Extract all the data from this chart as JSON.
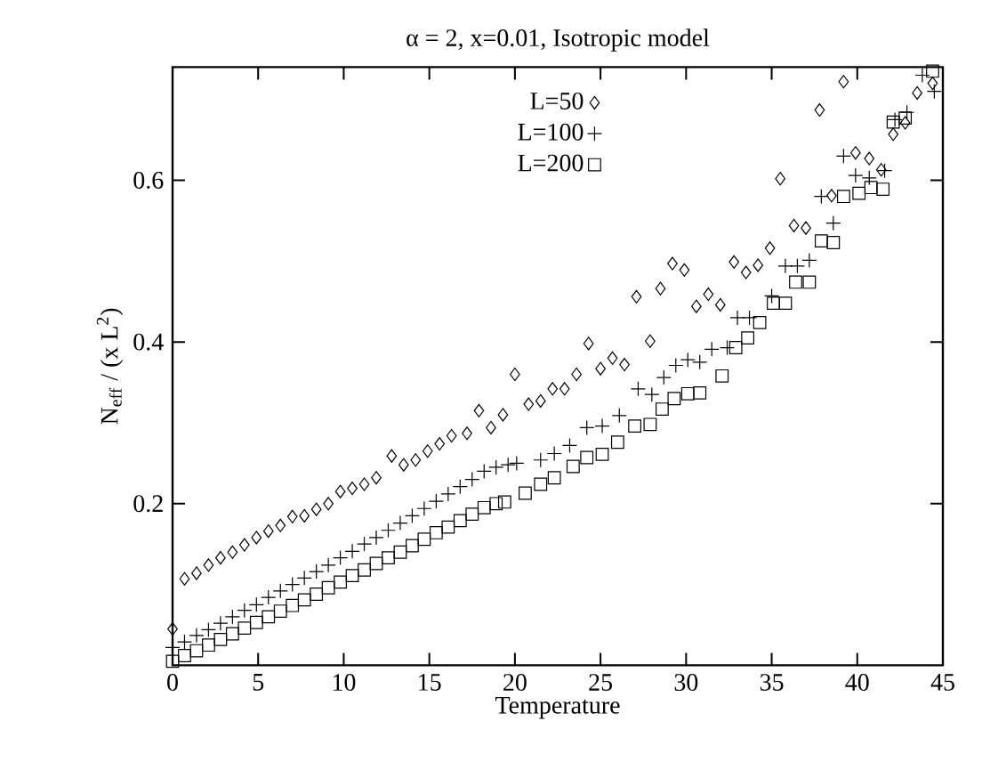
{
  "chart_data": {
    "type": "scatter",
    "title": "α = 2, x=0.01, Isotropic model",
    "xlabel": "Temperature",
    "ylabel": "N$_{eff}$ / (x L$^{2}$)",
    "xlim": [
      0,
      45
    ],
    "ylim": [
      0,
      0.74
    ],
    "xticks": [
      0,
      5,
      10,
      15,
      20,
      25,
      30,
      35,
      40,
      45
    ],
    "yticks": [
      0.2,
      0.4,
      0.6
    ],
    "grid": false,
    "legend": "top",
    "series": [
      {
        "name": "L=50",
        "color": "#000000",
        "marker": "diamond",
        "x": [
          0,
          0.7,
          1.4,
          2.1,
          2.8,
          3.5,
          4.2,
          4.9,
          5.6,
          6.3,
          7.0,
          7.7,
          8.4,
          9.1,
          9.8,
          10.5,
          11.2,
          11.9,
          12.8,
          13.5,
          14.2,
          14.9,
          15.6,
          16.3,
          17.2,
          17.9,
          18.6,
          19.3,
          20.0,
          20.8,
          21.5,
          22.2,
          22.9,
          23.6,
          24.3,
          25.0,
          25.7,
          26.4,
          27.1,
          27.9,
          28.5,
          29.2,
          29.9,
          30.6,
          31.3,
          32.0,
          32.8,
          33.5,
          34.2,
          34.9,
          35.5,
          36.3,
          37.0,
          37.8,
          38.5,
          39.2,
          39.9,
          40.7,
          41.4,
          42.1,
          42.8,
          43.5,
          44.4
        ],
        "values": [
          0.045,
          0.107,
          0.114,
          0.124,
          0.133,
          0.14,
          0.149,
          0.158,
          0.166,
          0.173,
          0.184,
          0.185,
          0.193,
          0.2,
          0.215,
          0.219,
          0.224,
          0.232,
          0.259,
          0.248,
          0.254,
          0.265,
          0.274,
          0.284,
          0.287,
          0.315,
          0.294,
          0.31,
          0.36,
          0.323,
          0.327,
          0.342,
          0.342,
          0.36,
          0.398,
          0.367,
          0.38,
          0.372,
          0.456,
          0.401,
          0.466,
          0.497,
          0.489,
          0.444,
          0.459,
          0.446,
          0.499,
          0.486,
          0.495,
          0.516,
          0.602,
          0.544,
          0.541,
          0.687,
          0.581,
          0.722,
          0.634,
          0.627,
          0.613,
          0.657,
          0.671,
          0.708,
          0.72
        ]
      },
      {
        "name": "L=100",
        "color": "#000000",
        "marker": "cross",
        "x": [
          0,
          0.7,
          1.4,
          2.1,
          2.8,
          3.5,
          4.2,
          4.9,
          5.6,
          6.3,
          7.0,
          7.7,
          8.4,
          9.1,
          9.8,
          10.5,
          11.2,
          11.9,
          12.6,
          13.3,
          14.0,
          14.7,
          15.4,
          16.1,
          16.8,
          17.5,
          18.2,
          18.9,
          19.6,
          20.1,
          21.5,
          22.3,
          23.2,
          24.2,
          25.1,
          26.1,
          27.2,
          28.0,
          28.7,
          29.4,
          30.1,
          30.8,
          31.5,
          32.4,
          33.0,
          33.7,
          35.0,
          35.8,
          36.5,
          37.2,
          37.9,
          38.6,
          39.2,
          39.9,
          40.7,
          41.6,
          42.2,
          42.9,
          43.8,
          44.5
        ],
        "values": [
          0.022,
          0.029,
          0.037,
          0.044,
          0.052,
          0.06,
          0.068,
          0.075,
          0.084,
          0.092,
          0.1,
          0.108,
          0.116,
          0.124,
          0.133,
          0.141,
          0.15,
          0.158,
          0.167,
          0.176,
          0.185,
          0.194,
          0.203,
          0.212,
          0.221,
          0.23,
          0.24,
          0.245,
          0.248,
          0.25,
          0.254,
          0.262,
          0.272,
          0.294,
          0.296,
          0.309,
          0.342,
          0.335,
          0.356,
          0.371,
          0.378,
          0.375,
          0.391,
          0.393,
          0.43,
          0.43,
          0.457,
          0.494,
          0.494,
          0.501,
          0.58,
          0.547,
          0.63,
          0.606,
          0.603,
          0.612,
          0.675,
          0.684,
          0.73,
          0.71
        ]
      },
      {
        "name": "L=200",
        "color": "#000000",
        "marker": "square",
        "x": [
          0,
          0.7,
          1.4,
          2.1,
          2.8,
          3.5,
          4.2,
          4.9,
          5.6,
          6.3,
          7.0,
          7.7,
          8.4,
          9.1,
          9.8,
          10.5,
          11.2,
          11.9,
          12.6,
          13.3,
          14.0,
          14.7,
          15.4,
          16.1,
          16.8,
          17.5,
          18.2,
          18.9,
          19.4,
          20.6,
          21.5,
          22.3,
          23.4,
          24.2,
          25.1,
          26.0,
          27.0,
          27.9,
          28.6,
          29.3,
          30.1,
          30.8,
          32.1,
          32.9,
          33.6,
          34.3,
          35.1,
          35.8,
          36.4,
          37.2,
          37.9,
          38.6,
          39.2,
          40.1,
          40.8,
          41.5,
          42.1,
          42.8,
          44.4
        ],
        "values": [
          0.005,
          0.012,
          0.018,
          0.025,
          0.032,
          0.039,
          0.046,
          0.053,
          0.06,
          0.067,
          0.074,
          0.081,
          0.088,
          0.096,
          0.103,
          0.111,
          0.118,
          0.126,
          0.133,
          0.14,
          0.148,
          0.156,
          0.164,
          0.171,
          0.179,
          0.187,
          0.195,
          0.2,
          0.202,
          0.213,
          0.224,
          0.232,
          0.246,
          0.257,
          0.261,
          0.276,
          0.296,
          0.298,
          0.317,
          0.33,
          0.336,
          0.337,
          0.358,
          0.393,
          0.405,
          0.424,
          0.448,
          0.448,
          0.474,
          0.474,
          0.525,
          0.523,
          0.58,
          0.584,
          0.591,
          0.589,
          0.672,
          0.677,
          0.735
        ]
      }
    ]
  }
}
